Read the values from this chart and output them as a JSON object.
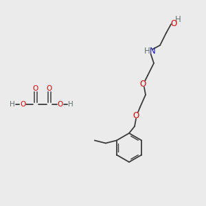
{
  "bg_color": "#ebebeb",
  "bond_color": "#3a3a3a",
  "O_color": "#e60000",
  "N_color": "#1414cc",
  "H_color": "#607070",
  "font_size": 7.5,
  "figsize": [
    3.0,
    3.0
  ],
  "dpi": 100,
  "xlim": [
    0,
    300
  ],
  "ylim": [
    0,
    300
  ]
}
